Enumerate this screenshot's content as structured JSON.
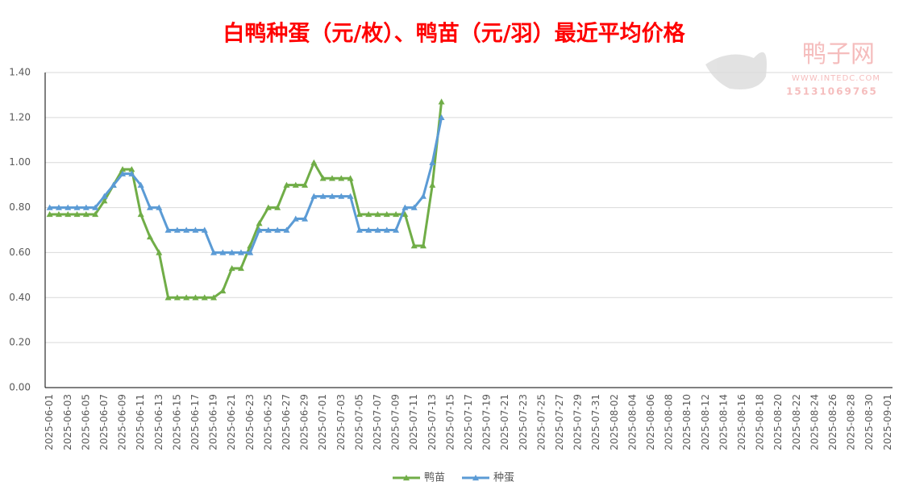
{
  "chart_data": {
    "type": "line",
    "title": "白鸭种蛋（元/枚）、鸭苗（元/羽）最近平均价格",
    "watermark": {
      "name": "鸭子网",
      "url": "WWW.INTEDC.COM",
      "phone": "15131069765"
    },
    "categories": [
      "2025-06-01",
      null,
      "2025-06-03",
      null,
      "2025-06-05",
      null,
      "2025-06-07",
      null,
      "2025-06-09",
      null,
      "2025-06-11",
      null,
      "2025-06-13",
      null,
      "2025-06-15",
      null,
      "2025-06-17",
      null,
      "2025-06-19",
      null,
      "2025-06-21",
      null,
      "2025-06-23",
      null,
      "2025-06-25",
      null,
      "2025-06-27",
      null,
      "2025-06-29",
      null,
      "2025-07-01",
      null,
      "2025-07-03",
      null,
      "2025-07-05",
      null,
      "2025-07-07",
      null,
      "2025-07-09",
      null,
      "2025-07-11",
      null,
      "2025-07-13",
      null,
      "2025-07-15",
      null,
      "2025-07-17",
      null,
      "2025-07-19",
      null,
      "2025-07-21",
      null,
      "2025-07-23",
      null,
      "2025-07-25",
      null,
      "2025-07-27",
      null,
      "2025-07-29",
      null,
      "2025-07-31",
      null,
      "2025-08-02",
      null,
      "2025-08-04",
      null,
      "2025-08-06",
      null,
      "2025-08-08",
      null,
      "2025-08-10",
      null,
      "2025-08-12",
      null,
      "2025-08-14",
      null,
      "2025-08-16",
      null,
      "2025-08-18",
      null,
      "2025-08-20",
      null,
      "2025-08-22",
      null,
      "2025-08-24",
      null,
      "2025-08-26",
      null,
      "2025-08-28",
      null,
      "2025-08-30",
      null,
      "2025-09-01"
    ],
    "series": [
      {
        "name": "鸭苗",
        "color": "#70ad47",
        "values": [
          0.77,
          0.77,
          0.77,
          0.77,
          0.77,
          0.77,
          0.83,
          0.9,
          0.97,
          0.97,
          0.77,
          0.67,
          0.6,
          0.4,
          0.4,
          0.4,
          0.4,
          0.4,
          0.4,
          0.43,
          0.53,
          0.53,
          0.63,
          0.73,
          0.8,
          0.8,
          0.9,
          0.9,
          0.9,
          1.0,
          0.93,
          0.93,
          0.93,
          0.93,
          0.77,
          0.77,
          0.77,
          0.77,
          0.77,
          0.77,
          0.63,
          0.63,
          0.9,
          1.27,
          null,
          null,
          null,
          null,
          null,
          null,
          null,
          null,
          null,
          null,
          null,
          null,
          null,
          null,
          null,
          null,
          null,
          null,
          null,
          null,
          null,
          null,
          null,
          null,
          null,
          null,
          null,
          null,
          null,
          null,
          null,
          null,
          null,
          null,
          null,
          null,
          null,
          null,
          null,
          null,
          null,
          null,
          null,
          null,
          null,
          null,
          null,
          null,
          null
        ]
      },
      {
        "name": "种蛋",
        "color": "#5b9bd5",
        "values": [
          0.8,
          0.8,
          0.8,
          0.8,
          0.8,
          0.8,
          0.85,
          0.9,
          0.95,
          0.95,
          0.9,
          0.8,
          0.8,
          0.7,
          0.7,
          0.7,
          0.7,
          0.7,
          0.6,
          0.6,
          0.6,
          0.6,
          0.6,
          0.7,
          0.7,
          0.7,
          0.7,
          0.75,
          0.75,
          0.85,
          0.85,
          0.85,
          0.85,
          0.85,
          0.7,
          0.7,
          0.7,
          0.7,
          0.7,
          0.8,
          0.8,
          0.85,
          1.0,
          1.2,
          null,
          null,
          null,
          null,
          null,
          null,
          null,
          null,
          null,
          null,
          null,
          null,
          null,
          null,
          null,
          null,
          null,
          null,
          null,
          null,
          null,
          null,
          null,
          null,
          null,
          null,
          null,
          null,
          null,
          null,
          null,
          null,
          null,
          null,
          null,
          null,
          null,
          null,
          null,
          null,
          null,
          null,
          null,
          null,
          null,
          null,
          null,
          null,
          null
        ]
      }
    ],
    "ylim": [
      0,
      1.4
    ],
    "yticks": [
      {
        "value": 0,
        "label": "0.00"
      },
      {
        "value": 0.2,
        "label": "0.20"
      },
      {
        "value": 0.4,
        "label": "0.40"
      },
      {
        "value": 0.6,
        "label": "0.60"
      },
      {
        "value": 0.8,
        "label": "0.80"
      },
      {
        "value": 1.0,
        "label": "1.00"
      },
      {
        "value": 1.2,
        "label": "1.20"
      },
      {
        "value": 1.4,
        "label": "1.40"
      }
    ],
    "grid": true,
    "legend": "bottom"
  }
}
